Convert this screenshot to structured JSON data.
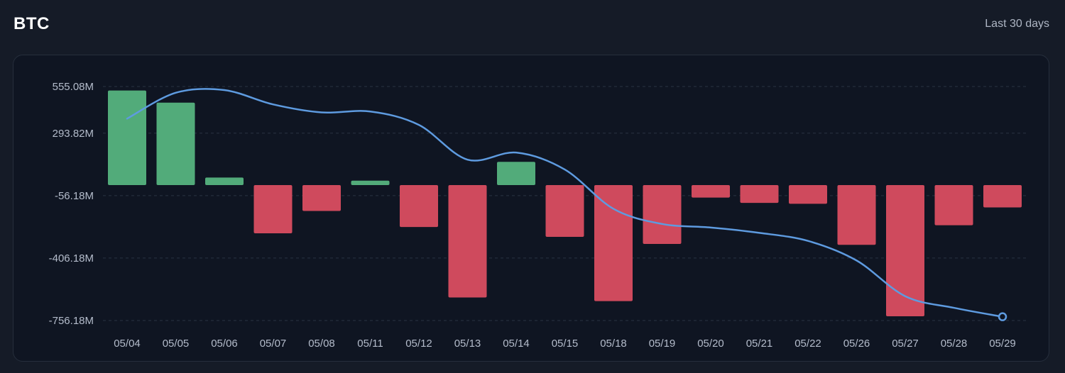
{
  "header": {
    "title": "BTC",
    "range_label": "Last 30 days"
  },
  "colors": {
    "positive": "#52ab7a",
    "negative": "#cf4a5d",
    "line": "#5e9be0",
    "grid": "#2a3343",
    "panel": "#0f1522"
  },
  "chart_data": {
    "type": "bar",
    "title": "",
    "xlabel": "",
    "ylabel": "",
    "y_tick_labels": [
      "555.08M",
      "293.82M",
      "-56.18M",
      "-406.18M",
      "-756.18M"
    ],
    "y_tick_values": [
      555.08,
      293.82,
      -56.18,
      -406.18,
      -756.18
    ],
    "ylim": [
      -756.18,
      555.08
    ],
    "grid": true,
    "categories": [
      "05/04",
      "05/05",
      "05/06",
      "05/07",
      "05/08",
      "05/11",
      "05/12",
      "05/13",
      "05/14",
      "05/15",
      "05/18",
      "05/19",
      "05/20",
      "05/21",
      "05/22",
      "05/26",
      "05/27",
      "05/28",
      "05/29"
    ],
    "series": [
      {
        "type": "bar",
        "values": [
          530,
          462,
          42,
          -270,
          -145,
          25,
          -235,
          -630,
          130,
          -290,
          -650,
          -330,
          -70,
          -100,
          -105,
          -335,
          -735,
          -225,
          -125
        ]
      },
      {
        "type": "line",
        "values": [
          375,
          520,
          535,
          455,
          410,
          415,
          340,
          145,
          185,
          90,
          -130,
          -215,
          -235,
          -265,
          -310,
          -420,
          -620,
          -685,
          -735
        ]
      }
    ]
  }
}
